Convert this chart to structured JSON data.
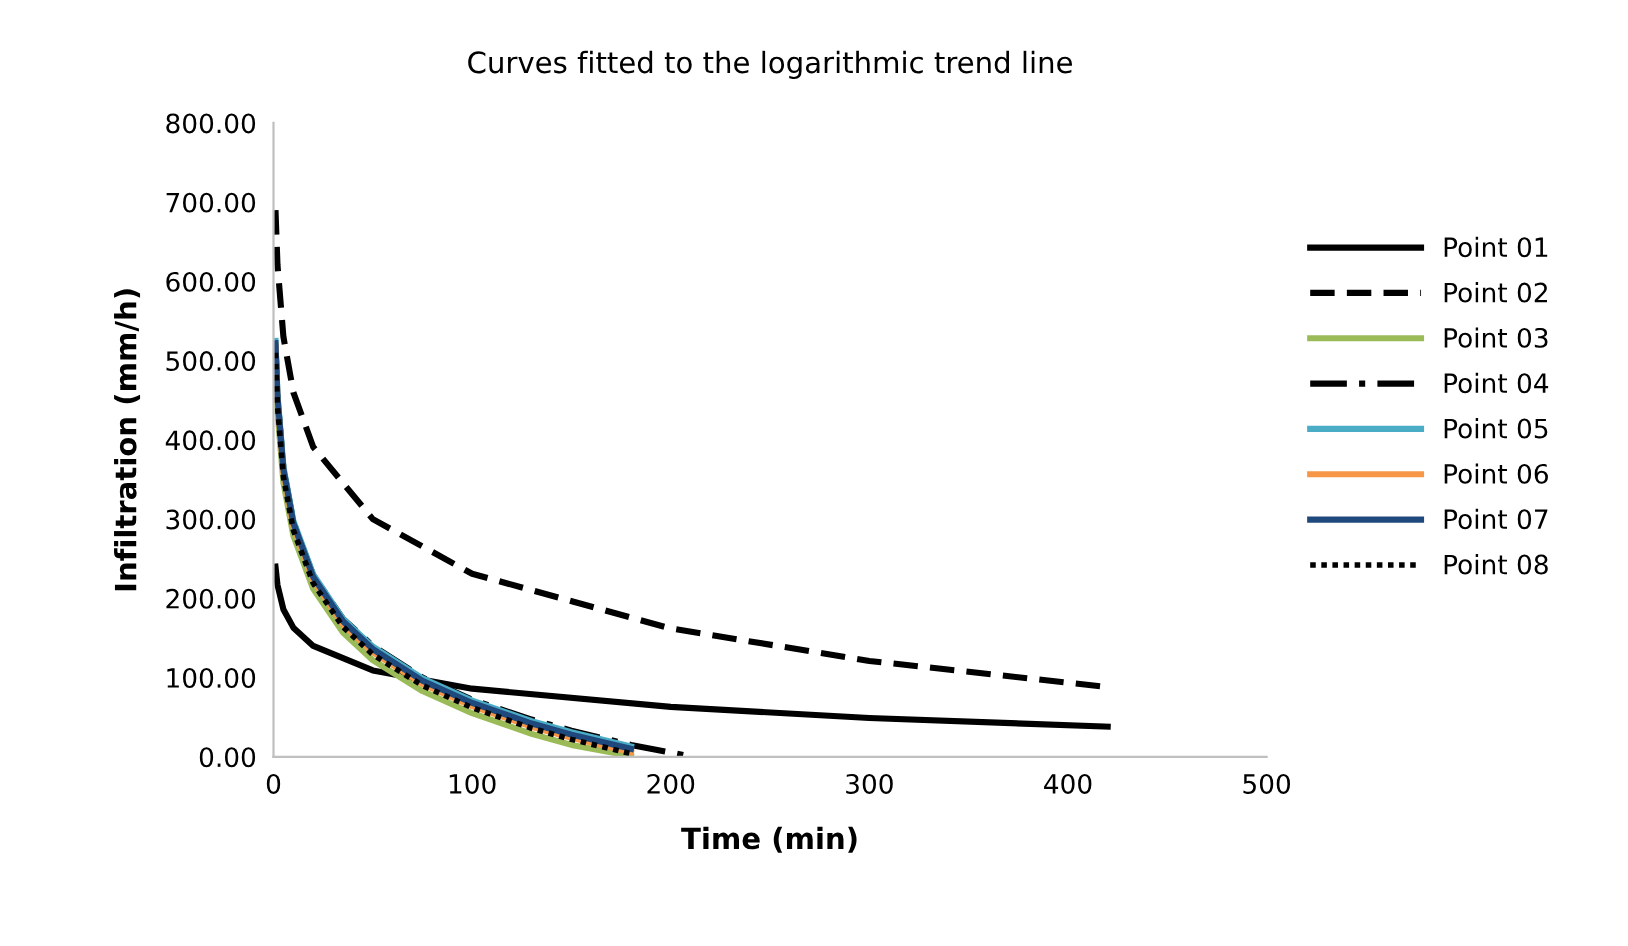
{
  "chart_data": {
    "type": "line",
    "title": "Curves fitted to the logarithmic trend line",
    "xlabel": "Time (min)",
    "ylabel": "Infiltration (mm/h)",
    "xlim": [
      0,
      500
    ],
    "xticks": [
      0,
      100,
      200,
      300,
      400,
      500
    ],
    "ylim": [
      0,
      800
    ],
    "yticks": [
      {
        "value": 0,
        "label": "0.00"
      },
      {
        "value": 100,
        "label": "100.00"
      },
      {
        "value": 200,
        "label": "200.00"
      },
      {
        "value": 300,
        "label": "300.00"
      },
      {
        "value": 400,
        "label": "400.00"
      },
      {
        "value": 500,
        "label": "500.00"
      },
      {
        "value": 600,
        "label": "600.00"
      },
      {
        "value": 700,
        "label": "700.00"
      },
      {
        "value": 800,
        "label": "800.00"
      }
    ],
    "grid": false,
    "legend": "right",
    "marker": "none",
    "series": [
      {
        "name": "Point 01",
        "color": "#000000",
        "line_style": "solid",
        "x": [
          1,
          2,
          5,
          10,
          20,
          50,
          100,
          200,
          300,
          420
        ],
        "values": [
          240,
          217,
          186,
          163,
          140,
          109,
          86,
          63,
          49,
          38
        ]
      },
      {
        "name": "Point 02",
        "color": "#000000",
        "line_style": "dashed",
        "x": [
          1,
          2,
          5,
          10,
          20,
          50,
          100,
          200,
          300,
          420
        ],
        "values": [
          690,
          621,
          530,
          460,
          391,
          300,
          231,
          162,
          121,
          88
        ]
      },
      {
        "name": "Point 03",
        "color": "#9bbb59",
        "line_style": "solid",
        "x": [
          1,
          2,
          5,
          10,
          20,
          35,
          50,
          75,
          100,
          130,
          150,
          180
        ],
        "values": [
          503,
          436,
          346,
          279,
          212,
          157,
          122,
          83,
          55,
          29,
          15,
          1
        ]
      },
      {
        "name": "Point 04",
        "color": "#000000",
        "line_style": "dashdot",
        "x": [
          1,
          2,
          5,
          10,
          20,
          35,
          50,
          75,
          100,
          130,
          150,
          180,
          207
        ],
        "values": [
          520,
          453,
          364,
          296,
          229,
          174,
          140,
          100,
          72,
          47,
          33,
          15,
          2
        ]
      },
      {
        "name": "Point 05",
        "color": "#4bacc6",
        "line_style": "solid",
        "x": [
          1,
          2,
          5,
          10,
          20,
          35,
          50,
          75,
          100,
          130,
          150,
          180
        ],
        "values": [
          525,
          457,
          366,
          298,
          230,
          174,
          139,
          99,
          71,
          45,
          31,
          13
        ]
      },
      {
        "name": "Point 06",
        "color": "#f79646",
        "line_style": "solid",
        "x": [
          1,
          2,
          5,
          10,
          20,
          35,
          50,
          75,
          100,
          130,
          150,
          180
        ],
        "values": [
          518,
          450,
          359,
          291,
          223,
          167,
          132,
          92,
          64,
          38,
          24,
          6
        ]
      },
      {
        "name": "Point 07",
        "color": "#1f497d",
        "line_style": "solid",
        "x": [
          1,
          2,
          5,
          10,
          20,
          35,
          50,
          75,
          100,
          130,
          150,
          180
        ],
        "values": [
          522,
          454,
          363,
          295,
          227,
          171,
          136,
          96,
          68,
          42,
          28,
          10
        ]
      },
      {
        "name": "Point 08",
        "color": "#000000",
        "line_style": "dotted",
        "x": [
          1,
          2,
          5,
          10,
          20,
          35,
          50,
          75,
          100,
          130,
          150,
          180
        ],
        "values": [
          510,
          443,
          353,
          286,
          219,
          164,
          129,
          90,
          62,
          36,
          22,
          4
        ]
      }
    ]
  }
}
